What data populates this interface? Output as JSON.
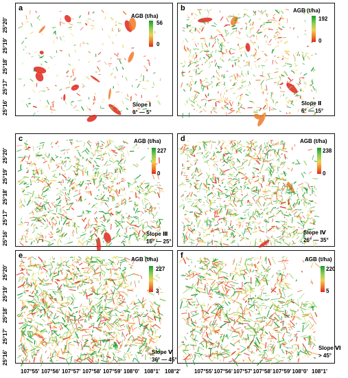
{
  "latitude_ticks": [
    "25°20'",
    "25°19'",
    "25°18'",
    "25°17'",
    "25°16'"
  ],
  "longitude_ticks_left": [
    "107°55'",
    "107°56'",
    "107°57'",
    "107°58'",
    "107°59'",
    "108°0'",
    "108°1'",
    "108°2'"
  ],
  "longitude_ticks_right": [
    "107°55'",
    "107°56'",
    "107°57'",
    "107°58'",
    "107°59'",
    "108°0'",
    "108°1'"
  ],
  "colors": {
    "high": "#1a9a2e",
    "mid_high": "#8ccf55",
    "mid": "#f0d050",
    "mid_low": "#f07a28",
    "low": "#e0261c"
  },
  "panels": [
    {
      "letter": "a",
      "legend_title": "AGB (t/ha)",
      "max": "56",
      "min": "0",
      "slope_name": "Slope Ⅰ",
      "slope_range": "0° — 5°"
    },
    {
      "letter": "b",
      "legend_title": "AGB (t/ha)",
      "max": "192",
      "min": "0",
      "slope_name": "Slope Ⅱ",
      "slope_range": "6° — 15°"
    },
    {
      "letter": "c",
      "legend_title": "AGB (t/ha)",
      "max": "227",
      "min": "0",
      "slope_name": "Slope Ⅲ",
      "slope_range": "16° — 25°"
    },
    {
      "letter": "d",
      "legend_title": "AGB (t/ha)",
      "max": "238",
      "min": "0",
      "slope_name": "Slope Ⅳ",
      "slope_range": "26° — 35°"
    },
    {
      "letter": "e",
      "legend_title": "AGB (t/ha)",
      "max": "227",
      "min": "3",
      "slope_name": "Slope Ⅴ",
      "slope_range": "36° — 45°"
    },
    {
      "letter": "f",
      "legend_title": "AGB (t/ha)",
      "max": "220",
      "min": "5",
      "slope_name": "Slope Ⅵ",
      "slope_range": "> 45°"
    }
  ]
}
